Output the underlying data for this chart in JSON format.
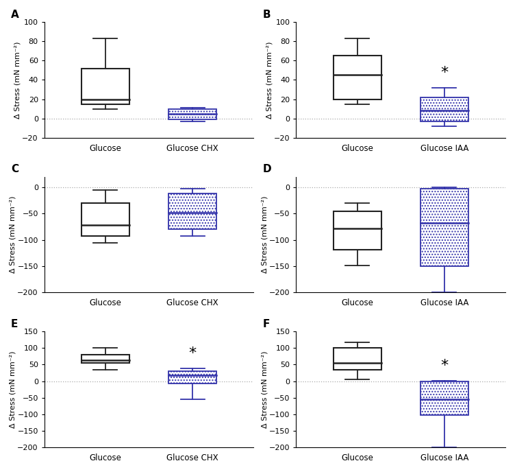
{
  "panels": [
    {
      "label": "A",
      "categories": [
        "Glucose",
        "Glucose CHX"
      ],
      "glucose": {
        "whislo": 10,
        "q1": 15,
        "med": 20,
        "q3": 52,
        "whishi": 83
      },
      "treatment": {
        "whislo": -3,
        "q1": -1,
        "med": 5,
        "q3": 10,
        "whishi": 11
      },
      "ylim": [
        -20,
        100
      ],
      "yticks": [
        -20,
        0,
        20,
        40,
        60,
        80,
        100
      ],
      "significant": false
    },
    {
      "label": "B",
      "categories": [
        "Glucose",
        "Glucose IAA"
      ],
      "glucose": {
        "whislo": 15,
        "q1": 20,
        "med": 45,
        "q3": 65,
        "whishi": 83
      },
      "treatment": {
        "whislo": -8,
        "q1": -3,
        "med": 8,
        "q3": 22,
        "whishi": 32
      },
      "ylim": [
        -20,
        100
      ],
      "yticks": [
        -20,
        0,
        20,
        40,
        60,
        80,
        100
      ],
      "significant": true
    },
    {
      "label": "C",
      "categories": [
        "Glucose",
        "Glucose CHX"
      ],
      "glucose": {
        "whislo": -105,
        "q1": -93,
        "med": -72,
        "q3": -30,
        "whishi": -5
      },
      "treatment": {
        "whislo": -92,
        "q1": -80,
        "med": -48,
        "q3": -12,
        "whishi": -3
      },
      "ylim": [
        -200,
        20
      ],
      "yticks": [
        -200,
        -150,
        -100,
        -50,
        0
      ],
      "significant": false
    },
    {
      "label": "D",
      "categories": [
        "Glucose",
        "Glucose IAA"
      ],
      "glucose": {
        "whislo": -148,
        "q1": -118,
        "med": -78,
        "q3": -45,
        "whishi": -30
      },
      "treatment": {
        "whislo": -200,
        "q1": -150,
        "med": -68,
        "q3": -2,
        "whishi": 0
      },
      "ylim": [
        -200,
        20
      ],
      "yticks": [
        -200,
        -150,
        -100,
        -50,
        0
      ],
      "significant": false
    },
    {
      "label": "E",
      "categories": [
        "Glucose",
        "Glucose CHX"
      ],
      "glucose": {
        "whislo": 35,
        "q1": 55,
        "med": 63,
        "q3": 80,
        "whishi": 100
      },
      "treatment": {
        "whislo": -55,
        "q1": -8,
        "med": 18,
        "q3": 30,
        "whishi": 38
      },
      "ylim": [
        -200,
        150
      ],
      "yticks": [
        -200,
        -150,
        -100,
        -50,
        0,
        50,
        100,
        150
      ],
      "significant": true
    },
    {
      "label": "F",
      "categories": [
        "Glucose",
        "Glucose IAA"
      ],
      "glucose": {
        "whislo": 5,
        "q1": 35,
        "med": 55,
        "q3": 100,
        "whishi": 118
      },
      "treatment": {
        "whislo": -200,
        "q1": -103,
        "med": -55,
        "q3": 0,
        "whishi": 2
      },
      "ylim": [
        -200,
        150
      ],
      "yticks": [
        -200,
        -150,
        -100,
        -50,
        0,
        50,
        100,
        150
      ],
      "significant": true
    }
  ],
  "ylabel": "Δ Stress (mN mm⁻²)",
  "box_width": 0.55,
  "glucose_color": "#222222",
  "treatment_color": "#3333aa",
  "background_color": "#ffffff",
  "figure_bg": "#ffffff",
  "hatch": "....",
  "zero_line_color": "#aaaaaa",
  "zero_line_style": ":",
  "star_fontsize": 16
}
